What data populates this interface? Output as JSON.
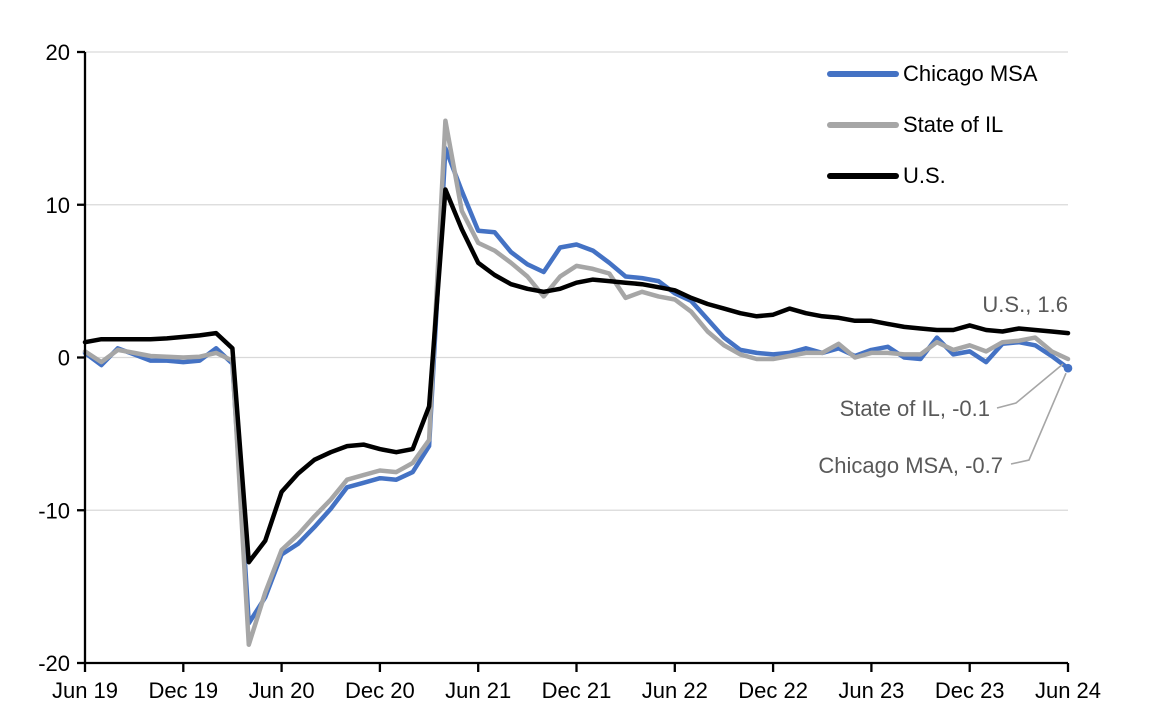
{
  "chart_data": {
    "type": "line",
    "title": "",
    "frequency": "monthly",
    "x_range": [
      "Jun 2019",
      "Jun 2024"
    ],
    "x_tick_labels": [
      "Jun 19",
      "Dec 19",
      "Jun 20",
      "Dec 20",
      "Jun 21",
      "Dec 21",
      "Jun 22",
      "Dec 22",
      "Jun 23",
      "Dec 23",
      "Jun 24"
    ],
    "months_per_tick": 6,
    "y_ticks": [
      20,
      10,
      0,
      -10,
      -20
    ],
    "ylim": [
      -20,
      20
    ],
    "grid": "horizontal",
    "legend_position": "top-right",
    "series": [
      {
        "name": "Chicago MSA",
        "color": "#4472C4",
        "end_marker": true,
        "values": [
          0.3,
          -0.5,
          0.6,
          0.2,
          -0.2,
          -0.2,
          -0.3,
          -0.2,
          0.6,
          -0.4,
          -17.4,
          -15.7,
          -12.9,
          -12.2,
          -11.1,
          -9.9,
          -8.5,
          -8.2,
          -7.9,
          -8.0,
          -7.5,
          -5.8,
          13.7,
          10.9,
          8.3,
          8.2,
          6.9,
          6.1,
          5.6,
          7.2,
          7.4,
          7.0,
          6.2,
          5.3,
          5.2,
          5.0,
          4.2,
          3.7,
          2.5,
          1.3,
          0.5,
          0.3,
          0.2,
          0.3,
          0.6,
          0.3,
          0.6,
          0.1,
          0.5,
          0.7,
          0.0,
          -0.1,
          1.3,
          0.2,
          0.4,
          -0.3,
          0.9,
          1.0,
          0.8,
          0.1,
          -0.7
        ]
      },
      {
        "name": "State of IL",
        "color": "#A6A6A6",
        "end_marker": false,
        "values": [
          0.4,
          -0.3,
          0.5,
          0.3,
          0.1,
          0.05,
          0.0,
          0.05,
          0.3,
          -0.2,
          -18.8,
          -15.4,
          -12.6,
          -11.6,
          -10.4,
          -9.3,
          -8.0,
          -7.7,
          -7.4,
          -7.5,
          -6.9,
          -5.4,
          15.5,
          9.6,
          7.5,
          7.0,
          6.2,
          5.3,
          4.0,
          5.3,
          6.0,
          5.8,
          5.5,
          3.9,
          4.3,
          4.0,
          3.8,
          3.0,
          1.7,
          0.8,
          0.2,
          -0.1,
          -0.1,
          0.1,
          0.3,
          0.3,
          0.9,
          0.0,
          0.3,
          0.3,
          0.2,
          0.2,
          1.0,
          0.5,
          0.8,
          0.4,
          1.0,
          1.1,
          1.3,
          0.4,
          -0.1
        ]
      },
      {
        "name": "U.S.",
        "color": "#000000",
        "end_marker": false,
        "values": [
          1.0,
          1.2,
          1.2,
          1.2,
          1.2,
          1.25,
          1.35,
          1.45,
          1.6,
          0.6,
          -13.4,
          -12.0,
          -8.8,
          -7.6,
          -6.7,
          -6.2,
          -5.8,
          -5.7,
          -6.0,
          -6.2,
          -6.0,
          -3.2,
          11.0,
          8.4,
          6.2,
          5.4,
          4.8,
          4.5,
          4.3,
          4.5,
          4.9,
          5.1,
          5.0,
          4.9,
          4.8,
          4.6,
          4.4,
          3.9,
          3.5,
          3.2,
          2.9,
          2.7,
          2.8,
          3.2,
          2.9,
          2.7,
          2.6,
          2.4,
          2.4,
          2.2,
          2.0,
          1.9,
          1.8,
          1.8,
          2.1,
          1.8,
          1.7,
          1.9,
          1.8,
          1.7,
          1.6
        ]
      }
    ],
    "annotations": [
      {
        "text": "U.S., 1.6"
      },
      {
        "text": "State of IL, -0.1"
      },
      {
        "text": "Chicago MSA, -0.7"
      }
    ]
  },
  "legend": {
    "items": [
      {
        "label": "Chicago MSA",
        "color": "#4472C4"
      },
      {
        "label": "State of IL",
        "color": "#A6A6A6"
      },
      {
        "label": "U.S.",
        "color": "#000000"
      }
    ]
  },
  "colors": {
    "background": "#FFFFFF",
    "gridline": "#D9D9D9",
    "axis": "#000000",
    "tick_label": "#000000",
    "annotation_text": "#595959",
    "leader_line": "#A6A6A6"
  }
}
